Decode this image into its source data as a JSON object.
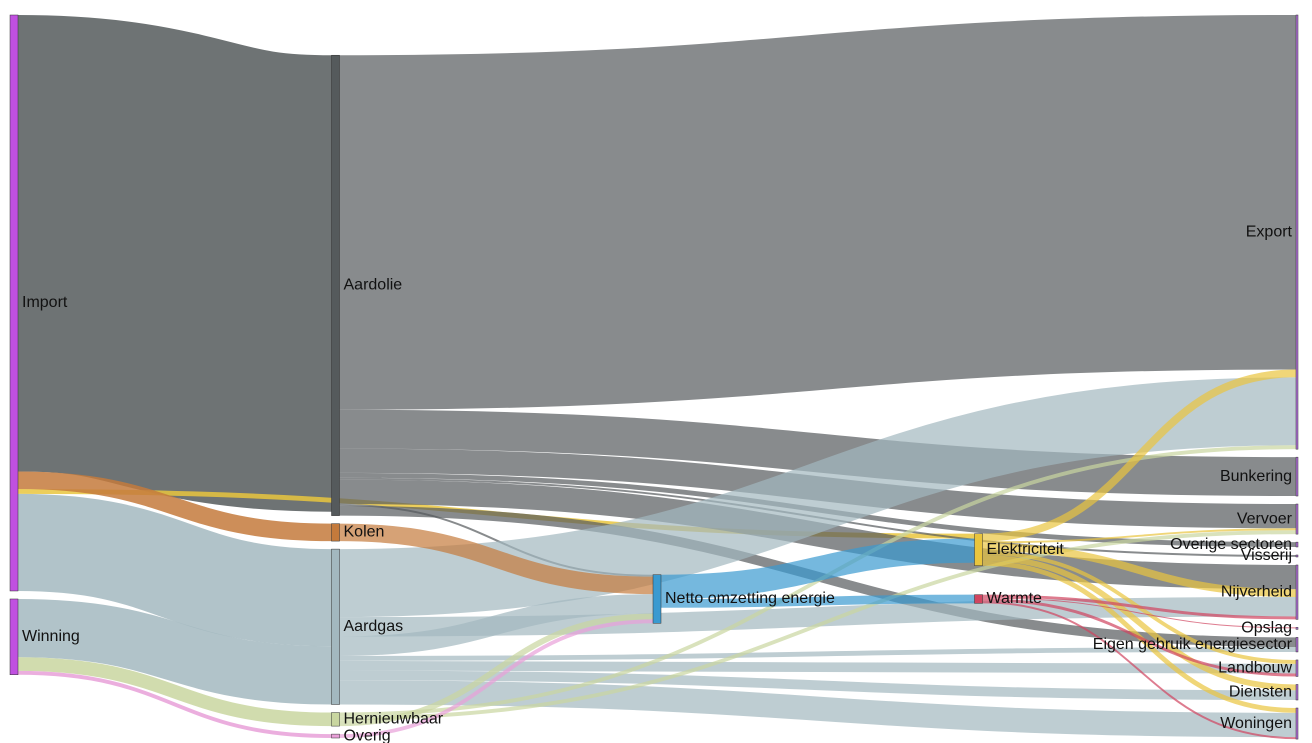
{
  "chart_data": {
    "type": "sankey",
    "nodes": [
      {
        "name": "Import",
        "color": "#c050e0"
      },
      {
        "name": "Winning",
        "color": "#c050e0"
      },
      {
        "name": "Aardolie",
        "color": "#555a5c"
      },
      {
        "name": "Aardgas",
        "color": "#a3b8bf"
      },
      {
        "name": "Kolen",
        "color": "#c47a3c"
      },
      {
        "name": "Hernieuwbaar",
        "color": "#c9d6a0"
      },
      {
        "name": "Overig",
        "color": "#e8a0d8"
      },
      {
        "name": "Netto omzetting energie",
        "color": "#3a9ad0"
      },
      {
        "name": "Elektriciteit",
        "color": "#e9c53e"
      },
      {
        "name": "Warmte",
        "color": "#d04560"
      },
      {
        "name": "Export",
        "color": "#b070d8"
      },
      {
        "name": "Bunkering",
        "color": "#b070d8"
      },
      {
        "name": "Vervoer",
        "color": "#b070d8"
      },
      {
        "name": "Overige sectoren",
        "color": "#b070d8"
      },
      {
        "name": "Visserij",
        "color": "#b070d8"
      },
      {
        "name": "Nijverheid",
        "color": "#b070d8"
      },
      {
        "name": "Opslag",
        "color": "#b070d8"
      },
      {
        "name": "Eigen gebruik energiesector",
        "color": "#b070d8"
      },
      {
        "name": "Landbouw",
        "color": "#b070d8"
      },
      {
        "name": "Diensten",
        "color": "#b070d8"
      },
      {
        "name": "Woningen",
        "color": "#b070d8"
      }
    ],
    "links": [
      {
        "source": "Import",
        "target": "Aardolie",
        "value": 470
      },
      {
        "source": "Import",
        "target": "Elektriciteit",
        "value": 5
      },
      {
        "source": "Import",
        "target": "Aardgas",
        "value": 100
      },
      {
        "source": "Import",
        "target": "Kolen",
        "value": 18
      },
      {
        "source": "Winning",
        "target": "Aardgas",
        "value": 60
      },
      {
        "source": "Winning",
        "target": "Hernieuwbaar",
        "value": 14
      },
      {
        "source": "Winning",
        "target": "Overig",
        "value": 4
      },
      {
        "source": "Aardolie",
        "target": "Export",
        "value": 365
      },
      {
        "source": "Aardolie",
        "target": "Bunkering",
        "value": 40
      },
      {
        "source": "Aardolie",
        "target": "Vervoer",
        "value": 25
      },
      {
        "source": "Aardolie",
        "target": "Overige sectoren",
        "value": 5
      },
      {
        "source": "Aardolie",
        "target": "Visserij",
        "value": 2
      },
      {
        "source": "Aardolie",
        "target": "Nijverheid",
        "value": 25
      },
      {
        "source": "Aardolie",
        "target": "Netto omzetting energie",
        "value": 2
      },
      {
        "source": "Aardolie",
        "target": "Eigen gebruik energiesector",
        "value": 10
      },
      {
        "source": "Aardgas",
        "target": "Export",
        "value": 70
      },
      {
        "source": "Aardgas",
        "target": "Netto omzetting energie",
        "value": 20
      },
      {
        "source": "Aardgas",
        "target": "Nijverheid",
        "value": 20
      },
      {
        "source": "Aardgas",
        "target": "Eigen gebruik energiesector",
        "value": 5
      },
      {
        "source": "Aardgas",
        "target": "Landbouw",
        "value": 10
      },
      {
        "source": "Aardgas",
        "target": "Diensten",
        "value": 10
      },
      {
        "source": "Aardgas",
        "target": "Woningen",
        "value": 25
      },
      {
        "source": "Kolen",
        "target": "Netto omzetting energie",
        "value": 18
      },
      {
        "source": "Hernieuwbaar",
        "target": "Netto omzetting energie",
        "value": 6
      },
      {
        "source": "Hernieuwbaar",
        "target": "Vervoer",
        "value": 4
      },
      {
        "source": "Hernieuwbaar",
        "target": "Export",
        "value": 4
      },
      {
        "source": "Overig",
        "target": "Netto omzetting energie",
        "value": 4
      },
      {
        "source": "Netto omzetting energie",
        "target": "Elektriciteit",
        "value": 25
      },
      {
        "source": "Netto omzetting energie",
        "target": "Warmte",
        "value": 9
      },
      {
        "source": "Elektriciteit",
        "target": "Export",
        "value": 8
      },
      {
        "source": "Elektriciteit",
        "target": "Vervoer",
        "value": 2
      },
      {
        "source": "Elektriciteit",
        "target": "Nijverheid",
        "value": 8
      },
      {
        "source": "Elektriciteit",
        "target": "Landbouw",
        "value": 4
      },
      {
        "source": "Elektriciteit",
        "target": "Diensten",
        "value": 6
      },
      {
        "source": "Elektriciteit",
        "target": "Woningen",
        "value": 5
      },
      {
        "source": "Warmte",
        "target": "Opslag",
        "value": 1
      },
      {
        "source": "Warmte",
        "target": "Nijverheid",
        "value": 3
      },
      {
        "source": "Warmte",
        "target": "Landbouw",
        "value": 3
      },
      {
        "source": "Warmte",
        "target": "Woningen",
        "value": 2
      }
    ]
  }
}
